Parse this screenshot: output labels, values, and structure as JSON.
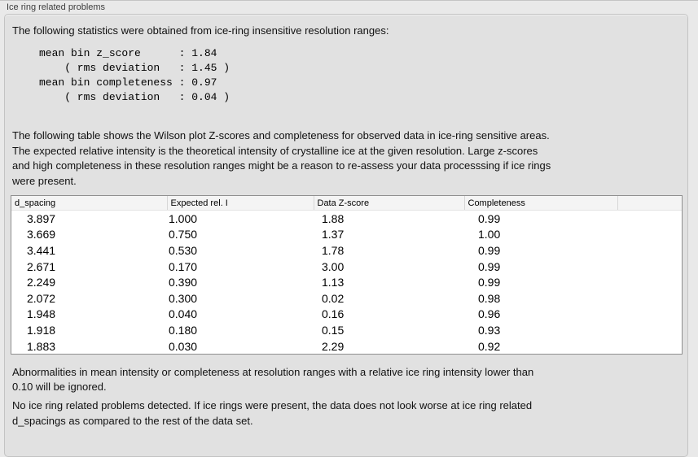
{
  "panel": {
    "title": "Ice ring related problems"
  },
  "intro": "The following statistics were obtained from ice-ring insensitive resolution ranges:",
  "stats_block": "mean bin z_score      : 1.84\n    ( rms deviation   : 1.45 )\nmean bin completeness : 0.97\n    ( rms deviation   : 0.04 )",
  "stats": {
    "mean_bin_z_score": "1.84",
    "z_score_rms_deviation": "1.45",
    "mean_bin_completeness": "0.97",
    "completeness_rms_deviation": "0.04"
  },
  "description": "The following table shows the Wilson plot Z-scores and completeness for observed data in ice-ring sensitive areas.\nThe expected relative intensity is the theoretical intensity of crystalline ice at the given resolution. Large z-scores\nand high completeness in these resolution ranges might be a reason to re-assess your data processsing if ice rings\nwere present.",
  "table": {
    "columns": [
      "d_spacing",
      "Expected rel. I",
      "Data Z-score",
      "Completeness"
    ],
    "rows": [
      [
        "3.897",
        "1.000",
        "1.88",
        "0.99"
      ],
      [
        "3.669",
        "0.750",
        "1.37",
        "1.00"
      ],
      [
        "3.441",
        "0.530",
        "1.78",
        "0.99"
      ],
      [
        "2.671",
        "0.170",
        "3.00",
        "0.99"
      ],
      [
        "2.249",
        "0.390",
        "1.13",
        "0.99"
      ],
      [
        "2.072",
        "0.300",
        "0.02",
        "0.98"
      ],
      [
        "1.948",
        "0.040",
        "0.16",
        "0.96"
      ],
      [
        "1.918",
        "0.180",
        "0.15",
        "0.93"
      ],
      [
        "1.883",
        "0.030",
        "2.29",
        "0.92"
      ]
    ]
  },
  "footer": {
    "ignore_note": "Abnormalities in mean intensity or completeness at resolution ranges with a relative ice ring intensity lower than\n0.10 will be ignored.",
    "conclusion": "No ice ring related problems detected. If ice rings were present, the data does not look worse at ice ring related\nd_spacings as compared to the rest of the data set."
  },
  "colors": {
    "page_background": "#e9e9e9",
    "groupbox_background": "#e1e1e1",
    "groupbox_border": "#c3c3c3",
    "table_border": "#8f8f8f",
    "table_header_background": "#f4f4f4",
    "text": "#000000"
  }
}
